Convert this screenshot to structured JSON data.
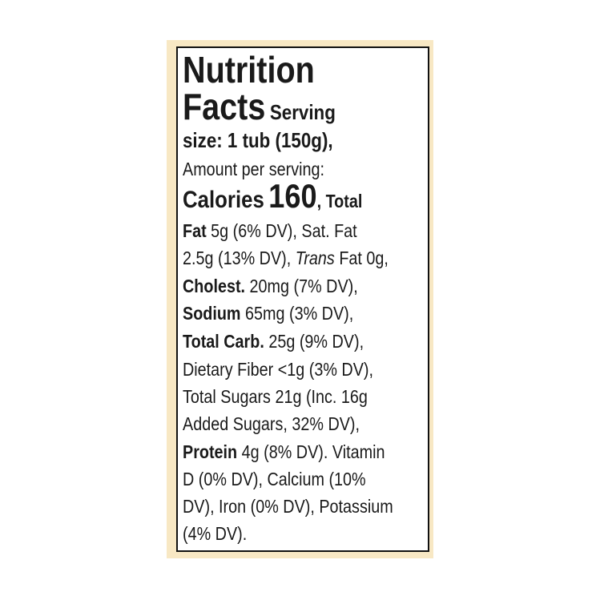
{
  "lines": [
    [
      "Nutrition"
    ],
    [
      "Facts",
      "Serving"
    ],
    [
      "size: 1 tub (150g),"
    ],
    [
      "Amount per serving:"
    ],
    [
      "Calories",
      "160",
      ", Total"
    ],
    [
      "Fat",
      "5g (6% DV), Sat. Fat"
    ],
    [
      "2.5g (13% DV),",
      "Trans",
      "Fat 0g,"
    ],
    [
      "Cholest.",
      "20mg (7% DV),"
    ],
    [
      "Sodium",
      "65mg (3% DV),"
    ],
    [
      "Total Carb.",
      "25g (9% DV),"
    ],
    [
      "Dietary Fiber <1g (3% DV),"
    ],
    [
      "Total Sugars 21g (Inc. 16g"
    ],
    [
      "Added Sugars, 32% DV),"
    ],
    [
      "Protein",
      "4g (8% DV). Vitamin"
    ],
    [
      "D (0% DV), Calcium (10%"
    ],
    [
      "DV), Iron (0% DV), Potassium"
    ],
    [
      "(4% DV)."
    ]
  ]
}
